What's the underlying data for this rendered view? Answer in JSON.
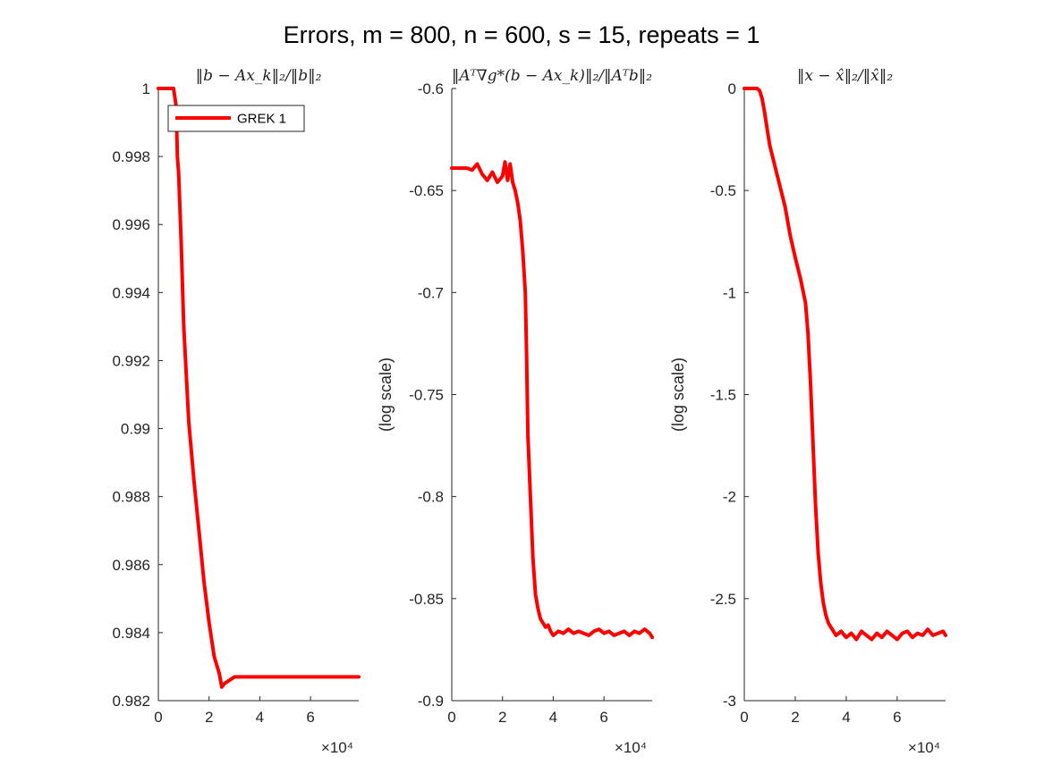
{
  "figure_title": "Errors, m = 800, n = 600, s = 15, repeats = 1",
  "colors": {
    "series": "#ff0000",
    "axis": "#262626"
  },
  "chart_data": [
    {
      "type": "line",
      "title": "‖b − Ax_k‖₂/‖b‖₂",
      "ylabel": "",
      "xlim": [
        0,
        79000
      ],
      "ylim": [
        0.982,
        1.0
      ],
      "x_exponent_label": "×10⁴",
      "xticks": [
        0,
        20000,
        40000,
        60000
      ],
      "xtick_labels": [
        "0",
        "2",
        "4",
        "6"
      ],
      "yticks": [
        0.982,
        0.984,
        0.986,
        0.988,
        0.99,
        0.992,
        0.994,
        0.996,
        0.998,
        1.0
      ],
      "ytick_labels": [
        "0.982",
        "0.984",
        "0.986",
        "0.988",
        "0.99",
        "0.992",
        "0.994",
        "0.996",
        "0.998",
        "1"
      ],
      "legend": {
        "position": "top-left",
        "entries": [
          "GREK 1"
        ]
      },
      "series": [
        {
          "name": "GREK 1",
          "x": [
            0,
            3000,
            6000,
            7000,
            7500,
            8000,
            9000,
            10000,
            12000,
            14000,
            16000,
            18000,
            20000,
            22000,
            24000,
            25000,
            26000,
            28000,
            30000,
            35000,
            40000,
            50000,
            60000,
            70000,
            79000
          ],
          "y": [
            1.0,
            1.0,
            1.0,
            0.9995,
            0.998,
            0.9975,
            0.9955,
            0.993,
            0.9902,
            0.9885,
            0.987,
            0.9855,
            0.9843,
            0.9833,
            0.9828,
            0.9824,
            0.9825,
            0.9826,
            0.9827,
            0.9827,
            0.9827,
            0.9827,
            0.9827,
            0.9827,
            0.9827
          ]
        }
      ]
    },
    {
      "type": "line",
      "title": "‖Aᵀ∇g*(b − Ax_k)‖₂/‖Aᵀb‖₂",
      "ylabel": "(log scale)",
      "xlim": [
        0,
        79000
      ],
      "ylim": [
        -0.9,
        -0.6
      ],
      "x_exponent_label": "×10⁴",
      "xticks": [
        0,
        20000,
        40000,
        60000
      ],
      "xtick_labels": [
        "0",
        "2",
        "4",
        "6"
      ],
      "yticks": [
        -0.9,
        -0.85,
        -0.8,
        -0.75,
        -0.7,
        -0.65,
        -0.6
      ],
      "ytick_labels": [
        "-0.9",
        "-0.85",
        "-0.8",
        "-0.75",
        "-0.7",
        "-0.65",
        "-0.6"
      ],
      "series": [
        {
          "name": "GREK 1",
          "x": [
            0,
            6000,
            8000,
            10000,
            12000,
            14000,
            16000,
            18000,
            20000,
            21000,
            22000,
            23000,
            24000,
            25000,
            26000,
            27000,
            28000,
            29000,
            29500,
            30000,
            31000,
            32000,
            33000,
            34000,
            35000,
            36000,
            37000,
            38000,
            39000,
            40000,
            42000,
            44000,
            46000,
            48000,
            50000,
            52000,
            54000,
            56000,
            58000,
            60000,
            62000,
            64000,
            66000,
            68000,
            70000,
            72000,
            74000,
            76000,
            78000,
            79000
          ],
          "y": [
            -0.639,
            -0.639,
            -0.64,
            -0.637,
            -0.642,
            -0.645,
            -0.641,
            -0.646,
            -0.643,
            -0.636,
            -0.645,
            -0.637,
            -0.646,
            -0.65,
            -0.656,
            -0.665,
            -0.68,
            -0.7,
            -0.73,
            -0.77,
            -0.8,
            -0.83,
            -0.848,
            -0.855,
            -0.86,
            -0.862,
            -0.864,
            -0.863,
            -0.866,
            -0.868,
            -0.866,
            -0.867,
            -0.865,
            -0.867,
            -0.866,
            -0.867,
            -0.868,
            -0.866,
            -0.865,
            -0.867,
            -0.866,
            -0.868,
            -0.867,
            -0.866,
            -0.868,
            -0.866,
            -0.867,
            -0.865,
            -0.867,
            -0.869
          ]
        }
      ]
    },
    {
      "type": "line",
      "title": "‖x − x̂‖₂/‖x̂‖₂",
      "ylabel": "(log scale)",
      "xlim": [
        0,
        79000
      ],
      "ylim": [
        -3,
        0
      ],
      "x_exponent_label": "×10⁴",
      "xticks": [
        0,
        20000,
        40000,
        60000
      ],
      "xtick_labels": [
        "0",
        "2",
        "4",
        "6"
      ],
      "yticks": [
        -3,
        -2.5,
        -2,
        -1.5,
        -1,
        -0.5,
        0
      ],
      "ytick_labels": [
        "-3",
        "-2.5",
        "-2",
        "-1.5",
        "-1",
        "-0.5",
        "0"
      ],
      "series": [
        {
          "name": "GREK 1",
          "x": [
            0,
            4000,
            5000,
            6000,
            7000,
            8000,
            9000,
            10000,
            12000,
            14000,
            16000,
            18000,
            20000,
            22000,
            24000,
            25000,
            26000,
            27000,
            28000,
            29000,
            30000,
            31000,
            32000,
            33000,
            34000,
            35000,
            36000,
            38000,
            40000,
            42000,
            44000,
            46000,
            48000,
            50000,
            52000,
            54000,
            56000,
            58000,
            60000,
            62000,
            64000,
            66000,
            68000,
            70000,
            72000,
            74000,
            76000,
            78000,
            79000
          ],
          "y": [
            0,
            0,
            0,
            -0.01,
            -0.05,
            -0.12,
            -0.2,
            -0.28,
            -0.38,
            -0.48,
            -0.58,
            -0.72,
            -0.83,
            -0.93,
            -1.05,
            -1.2,
            -1.45,
            -1.75,
            -2.05,
            -2.28,
            -2.42,
            -2.52,
            -2.58,
            -2.62,
            -2.64,
            -2.66,
            -2.68,
            -2.66,
            -2.69,
            -2.67,
            -2.7,
            -2.66,
            -2.68,
            -2.7,
            -2.67,
            -2.69,
            -2.66,
            -2.68,
            -2.7,
            -2.67,
            -2.66,
            -2.69,
            -2.67,
            -2.68,
            -2.65,
            -2.68,
            -2.67,
            -2.66,
            -2.68
          ]
        }
      ]
    }
  ]
}
